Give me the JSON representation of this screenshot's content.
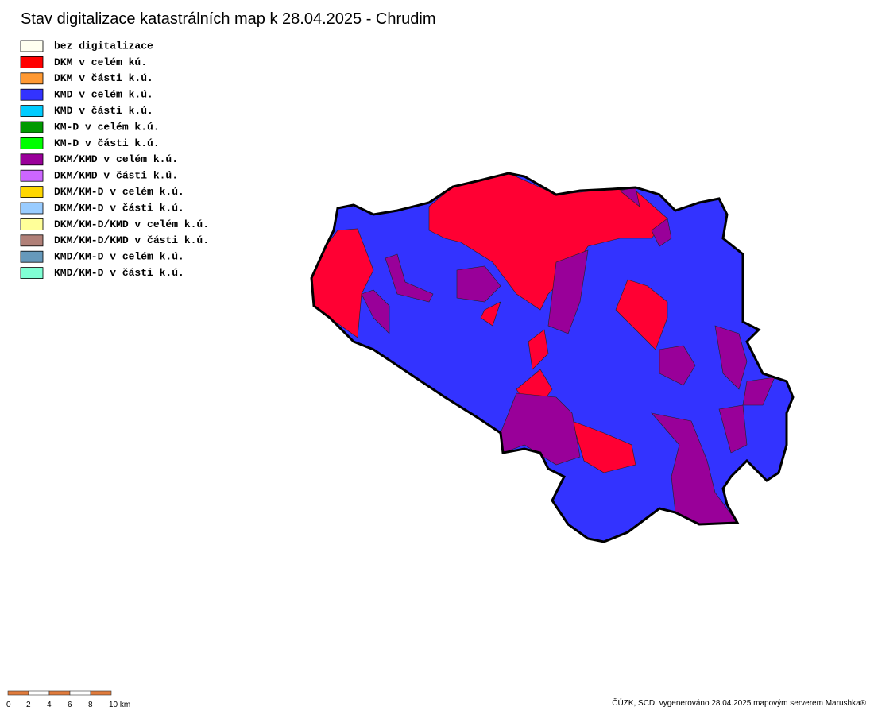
{
  "header": {
    "title": "Stav digitalizace katastrálních map k 28.04.2025 - Chrudim"
  },
  "legend": [
    {
      "label": "bez digitalizace",
      "color": "#fffff0"
    },
    {
      "label": "DKM v celém kú.",
      "color": "#ff0000"
    },
    {
      "label": "DKM v části k.ú.",
      "color": "#ff9933"
    },
    {
      "label": "KMD v celém k.ú.",
      "color": "#3333ff"
    },
    {
      "label": "KMD v části k.ú.",
      "color": "#00ccff"
    },
    {
      "label": "KM-D v celém k.ú.",
      "color": "#009900"
    },
    {
      "label": "KM-D v části k.ú.",
      "color": "#00ff00"
    },
    {
      "label": "DKM/KMD v celém k.ú.",
      "color": "#990099"
    },
    {
      "label": "DKM/KMD v části k.ú.",
      "color": "#cc66ff"
    },
    {
      "label": "DKM/KM-D v celém k.ú.",
      "color": "#ffd700"
    },
    {
      "label": "DKM/KM-D v části k.ú.",
      "color": "#99ccff"
    },
    {
      "label": "DKM/KM-D/KMD v celém k.ú.",
      "color": "#ffff99"
    },
    {
      "label": "DKM/KM-D/KMD v části k.ú.",
      "color": "#b08078"
    },
    {
      "label": "KMD/KM-D v celém k.ú.",
      "color": "#6699bb"
    },
    {
      "label": "KMD/KM-D v části k.ú.",
      "color": "#80ffd4"
    }
  ],
  "scale_bar": {
    "labels": [
      "0",
      "2",
      "4",
      "6",
      "8",
      "10 km"
    ]
  },
  "footer": {
    "credit": "ČÚZK, SCD, vygenerováno 28.04.2025 mapovým serverem Marushka®"
  }
}
